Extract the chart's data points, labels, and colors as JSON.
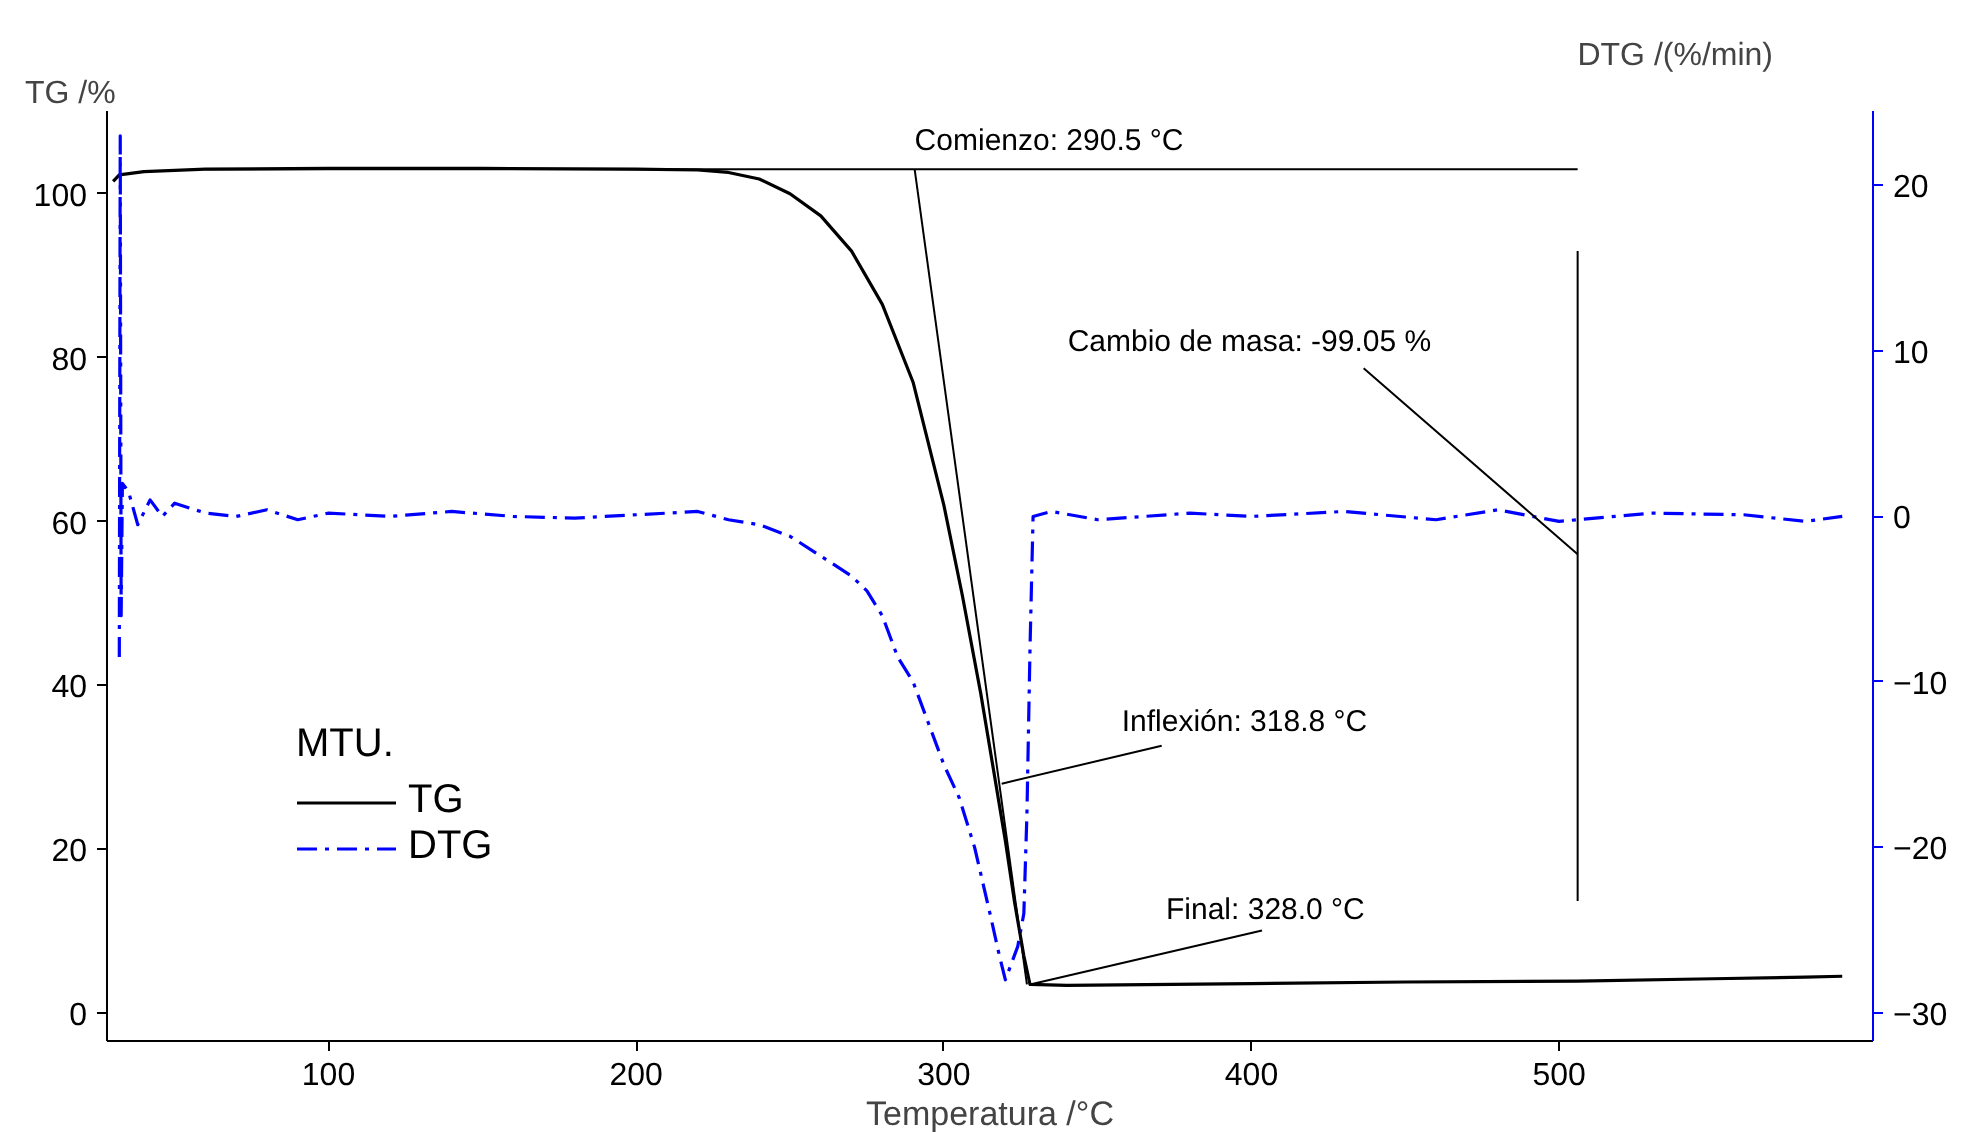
{
  "chart_data": {
    "type": "line",
    "xlabel": "Temperatura /°C",
    "ylabel": "TG /%",
    "y2label": "DTG /(%/min)",
    "legend_title": "MTU.",
    "xlim": [
      28,
      602
    ],
    "xticks": [
      100,
      200,
      300,
      400,
      500
    ],
    "ylim": [
      -3.4,
      110.1
    ],
    "yticks": [
      0,
      20,
      40,
      60,
      80,
      100
    ],
    "y2lim": [
      -31.7,
      24.5
    ],
    "y2ticks": [
      -30,
      -20,
      -10,
      0,
      10,
      20
    ],
    "legend": "left",
    "series": [
      {
        "name": "TG",
        "color": "#000000",
        "line_style": "solid",
        "x": [
          30,
          32,
          40,
          60,
          100,
          150,
          200,
          220,
          230,
          240,
          250,
          260,
          270,
          280,
          290,
          300,
          306,
          312,
          316,
          320,
          323,
          326,
          328,
          340,
          400,
          450,
          506,
          550,
          580,
          592
        ],
        "values": [
          101.5,
          102.3,
          102.7,
          103.0,
          103.1,
          103.1,
          103.0,
          102.9,
          102.6,
          101.8,
          100,
          97.3,
          93,
          86.5,
          77,
          62,
          51,
          39,
          30,
          21,
          13.5,
          7,
          3.5,
          3.4,
          3.6,
          3.8,
          3.9,
          4.2,
          4.4,
          4.5
        ]
      },
      {
        "name": "DTG",
        "color": "#0000ff",
        "line_style": "dashdot",
        "axis": "y2",
        "x": [
          32,
          32.3,
          32.6,
          33,
          35,
          38,
          42,
          46,
          50,
          60,
          70,
          80,
          90,
          100,
          120,
          140,
          160,
          180,
          200,
          220,
          230,
          240,
          250,
          260,
          270,
          275,
          280,
          285,
          290,
          295,
          300,
          305,
          310,
          315,
          318,
          320,
          322,
          324,
          326,
          327,
          328,
          329,
          335,
          350,
          380,
          400,
          430,
          460,
          480,
          500,
          530,
          560,
          580,
          592
        ],
        "values": [
          -8.5,
          23,
          -6,
          2,
          1.5,
          -0.5,
          1,
          0,
          0.8,
          0.2,
          0,
          0.4,
          -0.2,
          0.2,
          0,
          0.3,
          0,
          -0.1,
          0.1,
          0.3,
          -0.2,
          -0.5,
          -1.2,
          -2.4,
          -3.6,
          -4.5,
          -6,
          -8.5,
          -10,
          -12.5,
          -15,
          -17,
          -20,
          -24,
          -26.5,
          -28,
          -27,
          -26,
          -24,
          -18,
          -8,
          0,
          0.3,
          -0.2,
          0.2,
          0,
          0.3,
          -0.2,
          0.4,
          -0.3,
          0.2,
          0.1,
          -0.3,
          0
        ]
      },
      {
        "color": "#000000",
        "line_style": "solid",
        "x": [
          60,
          506
        ],
        "values": [
          103,
          103
        ]
      },
      {
        "color": "#000000",
        "line_style": "solid",
        "x": [
          290.5,
          327
        ],
        "values": [
          103,
          3.5
        ]
      },
      {
        "color": "#000000",
        "line_style": "solid",
        "x": [
          506,
          506
        ],
        "values": [
          93,
          13.7
        ]
      }
    ],
    "annotations": [
      {
        "text": "Comienzo: 290.5 °C",
        "x": 290.5,
        "y": 103
      },
      {
        "text": "Inflexión: 318.8 °C",
        "x": 318.8,
        "y": 28
      },
      {
        "text": "Final: 328.0 °C",
        "x": 328.0,
        "y": 3.5
      },
      {
        "text": "Cambio de masa: -99.05 %",
        "x": 506,
        "y": 56
      }
    ]
  }
}
